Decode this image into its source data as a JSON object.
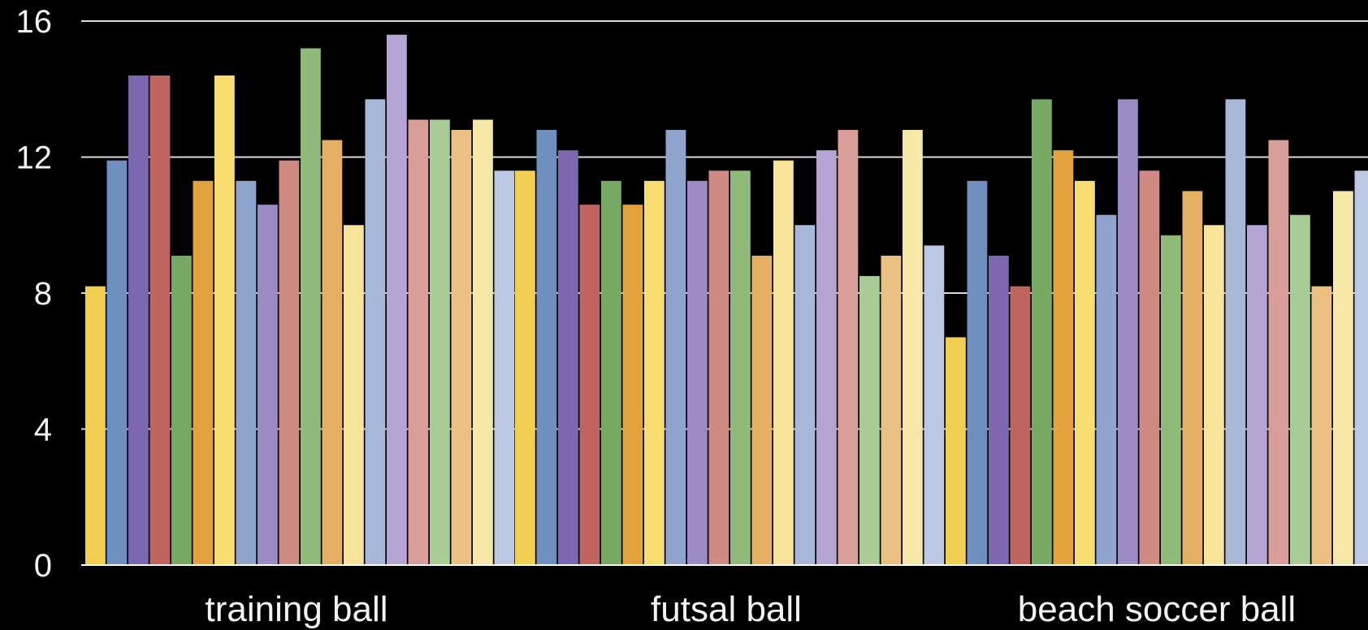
{
  "chart_data": {
    "type": "bar",
    "title": "",
    "xlabel": "",
    "ylabel": "",
    "ylim": [
      0,
      16
    ],
    "yticks": [
      0,
      4,
      8,
      12,
      16
    ],
    "grid": true,
    "legend": "none",
    "categories": [
      "training ball",
      "futsal ball",
      "beach soccer ball"
    ],
    "palette": [
      "#f2cf53",
      "#6f8fbf",
      "#7d67b3",
      "#bf6560",
      "#77a864",
      "#e3a23e",
      "#f8de70",
      "#8ea4cc",
      "#9c8ac4",
      "#cf8a84",
      "#8fba7a",
      "#e6b064",
      "#f7e39a",
      "#a8b8d8",
      "#b6a5d4",
      "#d99e98",
      "#a8cc96",
      "#ebc080",
      "#f8e8a8",
      "#bcc8e2"
    ],
    "series_values": [
      [
        8.2,
        11.9,
        14.4,
        14.4,
        9.1,
        11.3,
        14.4,
        11.3,
        10.6,
        11.9,
        15.2,
        12.5,
        10.0,
        13.7,
        15.6,
        13.1,
        13.1,
        12.8,
        13.1,
        11.6
      ],
      [
        11.6,
        12.8,
        12.2,
        10.6,
        11.3,
        10.6,
        11.3,
        12.8,
        11.3,
        11.6,
        11.6,
        9.1,
        11.9,
        10.0,
        12.2,
        12.8,
        8.5,
        9.1,
        12.8,
        9.4
      ],
      [
        6.7,
        11.3,
        9.1,
        8.2,
        13.7,
        12.2,
        11.3,
        10.3,
        13.7,
        11.6,
        9.7,
        11.0,
        10.0,
        13.7,
        10.0,
        12.5,
        10.3,
        8.2,
        11.0,
        11.6
      ]
    ]
  }
}
